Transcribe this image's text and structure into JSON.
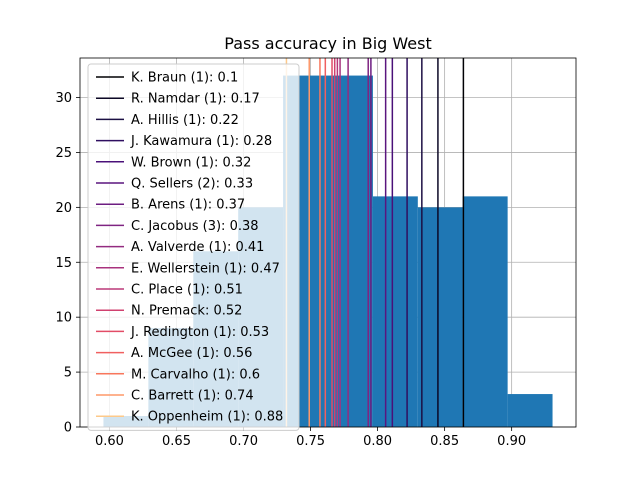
{
  "chart_data": {
    "type": "bar",
    "title": "Pass accuracy in Big West",
    "xlabel": "",
    "ylabel": "",
    "xlim": [
      0.578,
      0.948
    ],
    "ylim": [
      0,
      33.6
    ],
    "x_ticks": [
      0.6,
      0.65,
      0.7,
      0.75,
      0.8,
      0.85,
      0.9
    ],
    "x_tick_labels": [
      "0.60",
      "0.65",
      "0.70",
      "0.75",
      "0.80",
      "0.85",
      "0.90"
    ],
    "y_ticks": [
      0,
      5,
      10,
      15,
      20,
      25,
      30
    ],
    "y_tick_labels": [
      "0",
      "5",
      "10",
      "15",
      "20",
      "25",
      "30"
    ],
    "grid": true,
    "legend_position": "upper-left",
    "bar_color": "#1f77b4",
    "bins": [
      {
        "x0": 0.5955,
        "x1": 0.629,
        "count": 1
      },
      {
        "x0": 0.629,
        "x1": 0.6625,
        "count": 9
      },
      {
        "x0": 0.6625,
        "x1": 0.696,
        "count": 16
      },
      {
        "x0": 0.696,
        "x1": 0.7295,
        "count": 20
      },
      {
        "x0": 0.7295,
        "x1": 0.763,
        "count": 32
      },
      {
        "x0": 0.763,
        "x1": 0.7965,
        "count": 32
      },
      {
        "x0": 0.7965,
        "x1": 0.83,
        "count": 21
      },
      {
        "x0": 0.83,
        "x1": 0.8635,
        "count": 20
      },
      {
        "x0": 0.8635,
        "x1": 0.897,
        "count": 21
      },
      {
        "x0": 0.897,
        "x1": 0.9305,
        "count": 3
      }
    ],
    "vlines": [
      {
        "label": "K. Braun (1): 0.1",
        "x": 0.864,
        "color": "#000004"
      },
      {
        "label": "R. Namdar (1): 0.17",
        "x": 0.845,
        "color": "#0c0826"
      },
      {
        "label": "A. Hillis (1): 0.22",
        "x": 0.833,
        "color": "#1c1044"
      },
      {
        "label": "J. Kawamura (1): 0.28",
        "x": 0.822,
        "color": "#2f0f60"
      },
      {
        "label": "W. Brown (1): 0.32",
        "x": 0.811,
        "color": "#4a1079"
      },
      {
        "label": "Q. Sellers (2): 0.33",
        "x": 0.806,
        "color": "#5a157f"
      },
      {
        "label": "B. Arens (1): 0.37",
        "x": 0.795,
        "color": "#6d1d81"
      },
      {
        "label": "C. Jacobus (3): 0.38",
        "x": 0.793,
        "color": "#7f2482"
      },
      {
        "label": "A. Valverde (1): 0.41",
        "x": 0.778,
        "color": "#932b80"
      },
      {
        "label": "E. Wellerstein (1): 0.47",
        "x": 0.772,
        "color": "#a8327d"
      },
      {
        "label": "C. Place (1): 0.51",
        "x": 0.77,
        "color": "#bb3878"
      },
      {
        "label": "N. Premack: 0.52",
        "x": 0.768,
        "color": "#d0416f"
      },
      {
        "label": "J. Redington (1): 0.53",
        "x": 0.766,
        "color": "#e24d66"
      },
      {
        "label": "A. McGee (1): 0.56",
        "x": 0.761,
        "color": "#f06060"
      },
      {
        "label": "M. Carvalho (1): 0.6",
        "x": 0.757,
        "color": "#f8775c"
      },
      {
        "label": "C. Barrett (1): 0.74",
        "x": 0.749,
        "color": "#fe9969"
      },
      {
        "label": "K. Oppenheim (1): 0.88",
        "x": 0.732,
        "color": "#fdc98a"
      }
    ]
  }
}
